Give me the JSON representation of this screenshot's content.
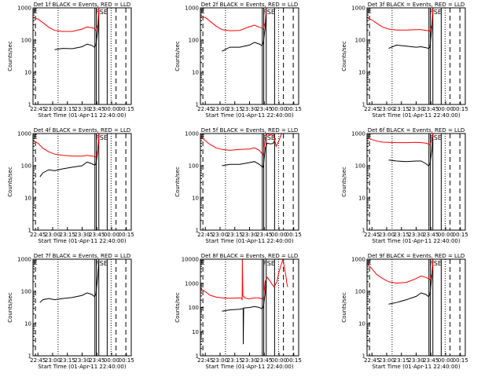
{
  "figure": {
    "background": "#ffffff"
  },
  "styles": {
    "events_color": "#000000",
    "lld_color": "#ff0000",
    "axis_color": "#000000"
  },
  "common": {
    "ylabel": "Counts/sec",
    "xlabel": "Start Time (01-Apr-11 22:40:00)",
    "xtick_labels": [
      "22:45",
      "23:00",
      "23:15",
      "23:30",
      "23:45",
      "00:00",
      "00:15"
    ],
    "xtick_minutes": [
      5,
      20,
      35,
      50,
      65,
      80,
      95
    ],
    "xlim_minutes": [
      0,
      100
    ],
    "ylim": [
      1,
      10000
    ],
    "yscale": "log",
    "ytick_values": [
      1,
      10,
      100,
      1000,
      10000
    ],
    "ytick_labels": [
      "1",
      "10",
      "100",
      "1000",
      "10000"
    ],
    "vline_labels": [
      "E",
      "F",
      "SE"
    ]
  },
  "chart_data": [
    {
      "type": "line",
      "title": "Det 1f BLACK = Events, RED = LLD",
      "ylim": [
        1,
        1000
      ],
      "vlines": [
        63,
        64.5,
        67,
        75.5
      ],
      "dotted": [
        25.5,
        79.5
      ],
      "dashed": [
        2.5,
        84.5,
        94.5
      ],
      "series": [
        {
          "name": "Events",
          "x": [
            22,
            30,
            40,
            50,
            55,
            60,
            62.5,
            64,
            66,
            67
          ],
          "y": [
            50,
            55,
            54,
            62,
            75,
            68,
            60,
            70,
            200,
            800
          ]
        },
        {
          "name": "LLD",
          "x": [
            0,
            5,
            10,
            16,
            22,
            30,
            40,
            50,
            55,
            60,
            62.5,
            64,
            66,
            67
          ],
          "y": [
            500,
            450,
            350,
            250,
            200,
            185,
            185,
            220,
            255,
            240,
            230,
            200,
            300,
            1000
          ]
        }
      ]
    },
    {
      "type": "line",
      "title": "Det 2f BLACK = Events, RED = LLD",
      "ylim": [
        1,
        1000
      ],
      "vlines": [
        63,
        64.5,
        67,
        75.5
      ],
      "dotted": [
        25.5,
        79.5
      ],
      "dashed": [
        2.5,
        84.5,
        94.5
      ],
      "series": [
        {
          "name": "Events",
          "x": [
            22,
            30,
            40,
            50,
            55,
            60,
            62.5,
            64,
            66,
            67
          ],
          "y": [
            45,
            60,
            60,
            70,
            85,
            75,
            68,
            80,
            250,
            900
          ]
        },
        {
          "name": "LLD",
          "x": [
            0,
            5,
            10,
            16,
            22,
            30,
            40,
            50,
            55,
            60,
            62.5,
            64,
            66,
            67
          ],
          "y": [
            550,
            500,
            380,
            270,
            210,
            195,
            200,
            260,
            290,
            250,
            240,
            220,
            350,
            1000
          ]
        }
      ]
    },
    {
      "type": "line",
      "title": "Det 3f BLACK = Events, RED = LLD",
      "ylim": [
        1,
        1000
      ],
      "vlines": [
        63,
        64.5,
        67,
        75.5
      ],
      "dotted": [
        25.5,
        79.5
      ],
      "dashed": [
        2.5,
        84.5,
        94.5
      ],
      "series": [
        {
          "name": "Events",
          "x": [
            22,
            30,
            40,
            50,
            55,
            60,
            62.5,
            64,
            66,
            67
          ],
          "y": [
            55,
            70,
            65,
            60,
            62,
            58,
            55,
            60,
            250,
            900
          ]
        },
        {
          "name": "LLD",
          "x": [
            0,
            5,
            10,
            16,
            22,
            30,
            40,
            50,
            55,
            60,
            62.5,
            64,
            66,
            67
          ],
          "y": [
            500,
            420,
            330,
            250,
            220,
            205,
            205,
            210,
            210,
            200,
            195,
            190,
            300,
            1000
          ]
        }
      ]
    },
    {
      "type": "line",
      "title": "Det 4f BLACK = Events, RED = LLD",
      "ylim": [
        1,
        1000
      ],
      "vlines": [
        63,
        64.5,
        67,
        75.5
      ],
      "dotted": [
        25.5,
        79.5
      ],
      "dashed": [
        2.5,
        84.5,
        94.5
      ],
      "series": [
        {
          "name": "Events",
          "x": [
            7,
            10,
            16,
            22,
            30,
            40,
            50,
            55,
            60,
            62.5,
            64,
            66,
            67
          ],
          "y": [
            45,
            60,
            75,
            70,
            80,
            90,
            100,
            130,
            115,
            105,
            110,
            300,
            900
          ]
        },
        {
          "name": "LLD",
          "x": [
            0,
            5,
            10,
            16,
            22,
            30,
            40,
            50,
            55,
            60,
            62.5,
            64,
            66,
            67
          ],
          "y": [
            600,
            500,
            350,
            270,
            230,
            210,
            200,
            200,
            210,
            200,
            195,
            185,
            300,
            1000
          ]
        }
      ]
    },
    {
      "type": "line",
      "title": "Det 5f BLACK = Events, RED = LLD",
      "ylim": [
        1,
        1000
      ],
      "vlines": [
        63,
        64.5,
        67,
        75.5
      ],
      "dotted": [
        25.5,
        79.5
      ],
      "dashed": [
        2.5,
        84.5,
        94.5
      ],
      "series": [
        {
          "name": "Events",
          "x": [
            22,
            30,
            40,
            50,
            55,
            60,
            62.5,
            64,
            66,
            68,
            71,
            74,
            76.5
          ],
          "y": [
            100,
            110,
            110,
            125,
            135,
            110,
            95,
            90,
            350,
            500,
            480,
            490,
            700
          ]
        },
        {
          "name": "LLD",
          "x": [
            0,
            5,
            10,
            16,
            22,
            30,
            40,
            50,
            55,
            60,
            62.5,
            64,
            66,
            68,
            71,
            74,
            77,
            80,
            82,
            83
          ],
          "y": [
            800,
            600,
            450,
            360,
            320,
            300,
            320,
            330,
            360,
            300,
            240,
            220,
            700,
            1000,
            900,
            1000,
            400,
            600,
            900,
            1000
          ]
        }
      ]
    },
    {
      "type": "line",
      "title": "Det 6f BLACK = Events, RED = LLD",
      "ylim": [
        1,
        1000
      ],
      "vlines": [
        63,
        64.5,
        67,
        75.5
      ],
      "dotted": [
        25.5,
        79.5
      ],
      "dashed": [
        2.5,
        84.5,
        94.5
      ],
      "series": [
        {
          "name": "Events",
          "x": [
            22,
            30,
            40,
            50,
            55,
            60,
            62.5,
            64,
            66,
            67
          ],
          "y": [
            150,
            140,
            135,
            140,
            140,
            115,
            100,
            110,
            300,
            900
          ]
        },
        {
          "name": "LLD",
          "x": [
            0,
            5,
            10,
            16,
            22,
            30,
            40,
            50,
            55,
            60,
            62.5,
            64,
            66,
            67
          ],
          "y": [
            720,
            650,
            580,
            540,
            530,
            520,
            520,
            530,
            520,
            500,
            470,
            450,
            650,
            1000
          ]
        }
      ]
    },
    {
      "type": "line",
      "title": "Det 7f BLACK = Events, RED = LLD",
      "ylim": [
        1,
        1000
      ],
      "vlines": [
        63,
        64.5,
        67,
        75.5
      ],
      "dotted": [
        25.5,
        79.5
      ],
      "dashed": [
        2.5,
        84.5,
        94.5
      ],
      "series": [
        {
          "name": "Events",
          "x": [
            7,
            10,
            16,
            22,
            30,
            40,
            50,
            55,
            60,
            62.5,
            64,
            66,
            67
          ],
          "y": [
            45,
            55,
            60,
            55,
            60,
            65,
            75,
            90,
            80,
            70,
            80,
            300,
            900
          ]
        }
      ]
    },
    {
      "type": "line",
      "title": "Det 8f BLACK = Events, RED = LLD",
      "ylim": [
        1,
        10000
      ],
      "vlines": [
        63,
        64.5,
        67,
        75.5
      ],
      "dotted": [
        25.5,
        79.5
      ],
      "dashed": [
        2.5,
        84.5,
        94.5
      ],
      "series": [
        {
          "name": "Events",
          "x": [
            22,
            30,
            40,
            43.5,
            43.6,
            44,
            50,
            55,
            60,
            62.5,
            64,
            66,
            67
          ],
          "y": [
            70,
            80,
            85,
            90,
            3,
            95,
            100,
            110,
            100,
            90,
            100,
            400,
            1500
          ]
        },
        {
          "name": "LLD",
          "x": [
            0,
            5,
            10,
            16,
            22,
            30,
            40,
            42,
            42.5,
            42.7,
            43.2,
            46,
            50,
            55,
            60,
            62.5,
            64,
            66,
            68,
            70,
            73,
            75,
            78,
            80,
            84,
            87,
            88,
            88.5,
            89
          ],
          "y": [
            600,
            450,
            320,
            270,
            250,
            240,
            250,
            250,
            200,
            10000,
            300,
            240,
            230,
            250,
            250,
            230,
            220,
            1200,
            1800,
            1400,
            900,
            700,
            1200,
            3000,
            10000,
            2000,
            1000,
            800,
            700
          ]
        }
      ]
    },
    {
      "type": "line",
      "title": "Det 9f BLACK = Events, RED = LLD",
      "ylim": [
        1,
        1000
      ],
      "vlines": [
        63,
        64.5,
        67,
        75.5
      ],
      "dotted": [
        25.5,
        79.5
      ],
      "dashed": [
        2.5,
        84.5,
        94.5
      ],
      "series": [
        {
          "name": "Events",
          "x": [
            22,
            30,
            40,
            50,
            55,
            60,
            62.5,
            64,
            66,
            67
          ],
          "y": [
            40,
            45,
            55,
            70,
            90,
            80,
            70,
            80,
            300,
            900
          ]
        },
        {
          "name": "LLD",
          "x": [
            0,
            5,
            10,
            16,
            22,
            30,
            40,
            50,
            55,
            60,
            62.5,
            64,
            66,
            67
          ],
          "y": [
            750,
            500,
            330,
            250,
            200,
            180,
            190,
            250,
            300,
            270,
            250,
            230,
            350,
            1000
          ]
        }
      ]
    }
  ]
}
